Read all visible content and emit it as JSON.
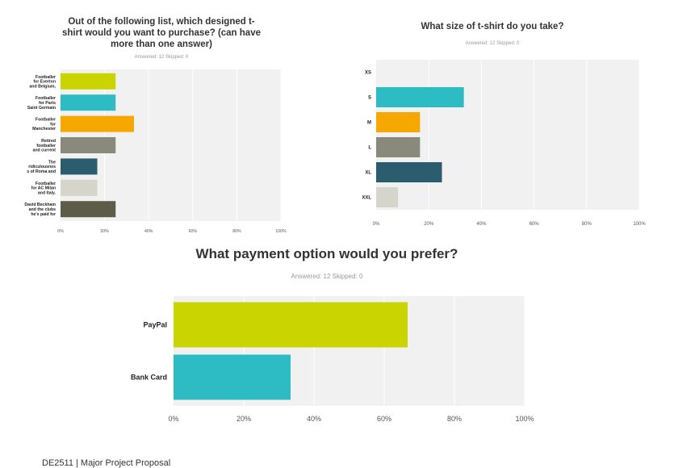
{
  "chart_data": [
    {
      "type": "bar",
      "orientation": "horizontal",
      "title": "Out of the following list, which designed t-shirt would you want to purchase? (can have more than one answer)",
      "subtitle": "Answered: 12    Skipped: 0",
      "categories": [
        [
          "Footballer",
          "for Everton",
          "and Belgium,"
        ],
        [
          "Footballer",
          "for Paris",
          "Saint Germain"
        ],
        [
          "Footballer",
          "for",
          "Manchester"
        ],
        [
          "Retired",
          "footballer",
          "and current"
        ],
        [
          "The",
          "ridiculousnes",
          "s of Roma and"
        ],
        [
          "Footballer",
          "for AC Milan",
          "and Italy."
        ],
        [
          "David Beckham",
          "and the clubs",
          "he's paid for"
        ]
      ],
      "values": [
        25,
        25,
        33.33,
        25,
        16.67,
        16.67,
        25
      ],
      "colors": [
        "#c9d400",
        "#2ebcc4",
        "#f6a800",
        "#8a8a7c",
        "#2b5d6e",
        "#d5d5cc",
        "#5c5c48"
      ],
      "ticks": [
        "0%",
        "20%",
        "40%",
        "60%",
        "80%",
        "100%"
      ],
      "xlim": [
        0,
        100
      ],
      "grid": true
    },
    {
      "type": "bar",
      "orientation": "horizontal",
      "title": "What size of t-shirt do you take?",
      "subtitle": "Answered: 12    Skipped: 0",
      "categories": [
        [
          "XS"
        ],
        [
          "S"
        ],
        [
          "M"
        ],
        [
          "L"
        ],
        [
          "XL"
        ],
        [
          "XXL"
        ]
      ],
      "values": [
        0,
        33.33,
        16.67,
        16.67,
        25,
        8.33
      ],
      "colors": [
        "#c9d400",
        "#2ebcc4",
        "#f6a800",
        "#8a8a7c",
        "#2b5d6e",
        "#d5d5cc"
      ],
      "ticks": [
        "0%",
        "20%",
        "40%",
        "60%",
        "80%",
        "100%"
      ],
      "xlim": [
        0,
        100
      ],
      "grid": true
    },
    {
      "type": "bar",
      "orientation": "horizontal",
      "title": "What payment option would you prefer?",
      "subtitle": "Answered: 12    Skipped: 0",
      "categories": [
        [
          "PayPal"
        ],
        [
          "Bank Card"
        ]
      ],
      "values": [
        66.67,
        33.33
      ],
      "colors": [
        "#c9d400",
        "#2ebcc4"
      ],
      "ticks": [
        "0%",
        "20%",
        "40%",
        "60%",
        "80%",
        "100%"
      ],
      "xlim": [
        0,
        100
      ],
      "grid": true
    }
  ],
  "footer": "DE2511 | Major Project Proposal"
}
